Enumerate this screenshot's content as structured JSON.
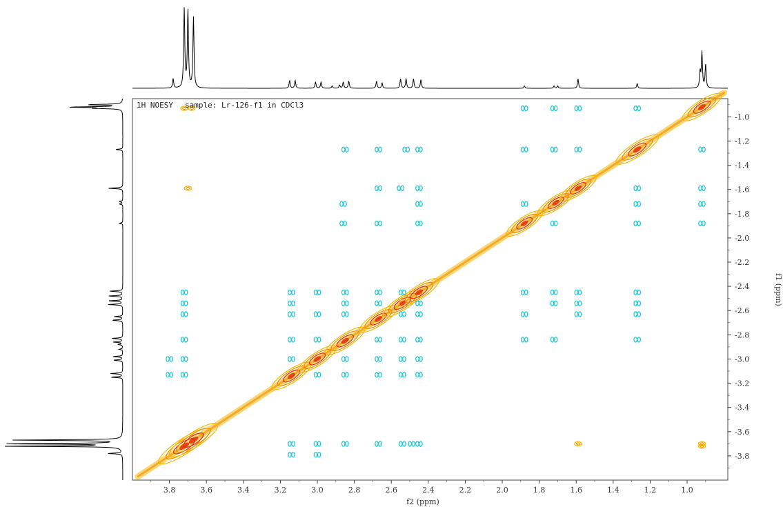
{
  "chart_data": {
    "type": "2d-nmr-contour",
    "experiment_label": "1H NOESY",
    "sample_label": "sample: Lr-126-f1 in CDCl3",
    "xlabel": "f2 (ppm)",
    "ylabel": "f1 (ppm)",
    "x_range": [
      4.0,
      0.78
    ],
    "y_range": [
      4.0,
      0.85
    ],
    "x_reversed": true,
    "y_increases_downward": true,
    "x_ticks": [
      "3.8",
      "3.6",
      "3.4",
      "3.2",
      "3.0",
      "2.8",
      "2.6",
      "2.4",
      "2.2",
      "2.0",
      "1.8",
      "1.6",
      "1.4",
      "1.2",
      "1.0"
    ],
    "y_ticks": [
      "1.0",
      "1.2",
      "1.4",
      "1.6",
      "1.8",
      "2.0",
      "2.2",
      "2.4",
      "2.6",
      "2.8",
      "3.0",
      "3.2",
      "3.4",
      "3.6",
      "3.8"
    ],
    "colors": {
      "positive_outer": "#f5b800",
      "positive_mid": "#f08c00",
      "positive_inner": "#e03010",
      "negative": "#21c7d4",
      "spectrum_line": "#000000",
      "frame": "#444444"
    },
    "proton_peaks_ppm": [
      {
        "ppm": 3.78,
        "height": 0.12
      },
      {
        "ppm": 3.72,
        "height": 1.0
      },
      {
        "ppm": 3.7,
        "height": 0.98
      },
      {
        "ppm": 3.67,
        "height": 0.9
      },
      {
        "ppm": 3.15,
        "height": 0.1
      },
      {
        "ppm": 3.12,
        "height": 0.1
      },
      {
        "ppm": 3.01,
        "height": 0.08
      },
      {
        "ppm": 2.98,
        "height": 0.08
      },
      {
        "ppm": 2.92,
        "height": 0.03
      },
      {
        "ppm": 2.88,
        "height": 0.04
      },
      {
        "ppm": 2.86,
        "height": 0.08
      },
      {
        "ppm": 2.83,
        "height": 0.09
      },
      {
        "ppm": 2.68,
        "height": 0.09
      },
      {
        "ppm": 2.65,
        "height": 0.07
      },
      {
        "ppm": 2.55,
        "height": 0.12
      },
      {
        "ppm": 2.52,
        "height": 0.12
      },
      {
        "ppm": 2.48,
        "height": 0.12
      },
      {
        "ppm": 2.44,
        "height": 0.11
      },
      {
        "ppm": 1.88,
        "height": 0.03
      },
      {
        "ppm": 1.72,
        "height": 0.03
      },
      {
        "ppm": 1.7,
        "height": 0.03
      },
      {
        "ppm": 1.59,
        "height": 0.12
      },
      {
        "ppm": 1.27,
        "height": 0.06
      },
      {
        "ppm": 0.93,
        "height": 0.2
      },
      {
        "ppm": 0.92,
        "height": 0.45
      },
      {
        "ppm": 0.9,
        "height": 0.3
      }
    ],
    "diagonal_peaks": [
      {
        "ppm": 3.72,
        "intensity": 1.0
      },
      {
        "ppm": 3.67,
        "intensity": 0.9
      },
      {
        "ppm": 3.14,
        "intensity": 0.6
      },
      {
        "ppm": 3.0,
        "intensity": 0.55
      },
      {
        "ppm": 2.85,
        "intensity": 0.6
      },
      {
        "ppm": 2.67,
        "intensity": 0.55
      },
      {
        "ppm": 2.54,
        "intensity": 0.6
      },
      {
        "ppm": 2.45,
        "intensity": 0.6
      },
      {
        "ppm": 1.88,
        "intensity": 0.5
      },
      {
        "ppm": 1.71,
        "intensity": 0.5
      },
      {
        "ppm": 1.59,
        "intensity": 0.5
      },
      {
        "ppm": 1.27,
        "intensity": 0.7
      },
      {
        "ppm": 0.92,
        "intensity": 0.6
      }
    ],
    "cross_peaks_positive": [
      {
        "f2": 3.72,
        "f1": 0.93
      },
      {
        "f2": 3.68,
        "f1": 0.93
      },
      {
        "f2": 3.7,
        "f1": 1.59
      },
      {
        "f2": 1.59,
        "f1": 3.7
      },
      {
        "f2": 0.92,
        "f1": 3.7
      },
      {
        "f2": 0.92,
        "f1": 3.72
      }
    ],
    "cross_peaks_negative": [
      {
        "f2": 1.88,
        "f1": 0.93
      },
      {
        "f2": 1.72,
        "f1": 0.93
      },
      {
        "f2": 1.59,
        "f1": 0.93
      },
      {
        "f2": 1.27,
        "f1": 0.93
      },
      {
        "f2": 1.88,
        "f1": 1.27
      },
      {
        "f2": 1.72,
        "f1": 1.27
      },
      {
        "f2": 1.59,
        "f1": 1.27
      },
      {
        "f2": 0.92,
        "f1": 1.27
      },
      {
        "f2": 2.85,
        "f1": 1.27
      },
      {
        "f2": 2.67,
        "f1": 1.27
      },
      {
        "f2": 2.52,
        "f1": 1.27
      },
      {
        "f2": 2.45,
        "f1": 1.27
      },
      {
        "f2": 2.67,
        "f1": 1.59
      },
      {
        "f2": 2.55,
        "f1": 1.59
      },
      {
        "f2": 2.45,
        "f1": 1.59
      },
      {
        "f2": 1.27,
        "f1": 1.59
      },
      {
        "f2": 0.92,
        "f1": 1.59
      },
      {
        "f2": 2.86,
        "f1": 1.72
      },
      {
        "f2": 2.45,
        "f1": 1.72
      },
      {
        "f2": 1.88,
        "f1": 1.72
      },
      {
        "f2": 1.27,
        "f1": 1.72
      },
      {
        "f2": 0.92,
        "f1": 1.72
      },
      {
        "f2": 2.86,
        "f1": 1.88
      },
      {
        "f2": 2.67,
        "f1": 1.88
      },
      {
        "f2": 2.45,
        "f1": 1.88
      },
      {
        "f2": 1.72,
        "f1": 1.88
      },
      {
        "f2": 1.27,
        "f1": 1.88
      },
      {
        "f2": 0.92,
        "f1": 1.88
      },
      {
        "f2": 3.72,
        "f1": 2.45
      },
      {
        "f2": 3.14,
        "f1": 2.45
      },
      {
        "f2": 3.0,
        "f1": 2.45
      },
      {
        "f2": 2.85,
        "f1": 2.45
      },
      {
        "f2": 2.67,
        "f1": 2.45
      },
      {
        "f2": 2.54,
        "f1": 2.45
      },
      {
        "f2": 1.88,
        "f1": 2.45
      },
      {
        "f2": 1.72,
        "f1": 2.45
      },
      {
        "f2": 1.59,
        "f1": 2.45
      },
      {
        "f2": 1.27,
        "f1": 2.45
      },
      {
        "f2": 3.72,
        "f1": 2.54
      },
      {
        "f2": 3.14,
        "f1": 2.54
      },
      {
        "f2": 2.85,
        "f1": 2.54
      },
      {
        "f2": 2.67,
        "f1": 2.54
      },
      {
        "f2": 2.45,
        "f1": 2.54
      },
      {
        "f2": 1.72,
        "f1": 2.54
      },
      {
        "f2": 1.59,
        "f1": 2.54
      },
      {
        "f2": 1.27,
        "f1": 2.54
      },
      {
        "f2": 3.72,
        "f1": 2.63
      },
      {
        "f2": 3.14,
        "f1": 2.63
      },
      {
        "f2": 3.0,
        "f1": 2.63
      },
      {
        "f2": 2.85,
        "f1": 2.63
      },
      {
        "f2": 2.54,
        "f1": 2.63
      },
      {
        "f2": 2.45,
        "f1": 2.63
      },
      {
        "f2": 1.88,
        "f1": 2.63
      },
      {
        "f2": 1.59,
        "f1": 2.63
      },
      {
        "f2": 1.27,
        "f1": 2.63
      },
      {
        "f2": 3.72,
        "f1": 2.84
      },
      {
        "f2": 3.14,
        "f1": 2.84
      },
      {
        "f2": 3.0,
        "f1": 2.84
      },
      {
        "f2": 2.67,
        "f1": 2.84
      },
      {
        "f2": 2.54,
        "f1": 2.84
      },
      {
        "f2": 2.45,
        "f1": 2.84
      },
      {
        "f2": 1.88,
        "f1": 2.84
      },
      {
        "f2": 1.72,
        "f1": 2.84
      },
      {
        "f2": 1.27,
        "f1": 2.84
      },
      {
        "f2": 3.8,
        "f1": 3.0
      },
      {
        "f2": 3.72,
        "f1": 3.0
      },
      {
        "f2": 3.14,
        "f1": 3.0
      },
      {
        "f2": 2.85,
        "f1": 3.0
      },
      {
        "f2": 2.67,
        "f1": 3.0
      },
      {
        "f2": 2.54,
        "f1": 3.0
      },
      {
        "f2": 2.45,
        "f1": 3.0
      },
      {
        "f2": 3.8,
        "f1": 3.13
      },
      {
        "f2": 3.72,
        "f1": 3.13
      },
      {
        "f2": 3.0,
        "f1": 3.13
      },
      {
        "f2": 2.85,
        "f1": 3.13
      },
      {
        "f2": 2.67,
        "f1": 3.13
      },
      {
        "f2": 2.54,
        "f1": 3.13
      },
      {
        "f2": 2.45,
        "f1": 3.13
      },
      {
        "f2": 3.14,
        "f1": 3.7
      },
      {
        "f2": 3.0,
        "f1": 3.7
      },
      {
        "f2": 2.85,
        "f1": 3.7
      },
      {
        "f2": 2.67,
        "f1": 3.7
      },
      {
        "f2": 2.54,
        "f1": 3.7
      },
      {
        "f2": 2.49,
        "f1": 3.7
      },
      {
        "f2": 2.45,
        "f1": 3.7
      },
      {
        "f2": 3.14,
        "f1": 3.79
      },
      {
        "f2": 3.0,
        "f1": 3.79
      }
    ]
  }
}
